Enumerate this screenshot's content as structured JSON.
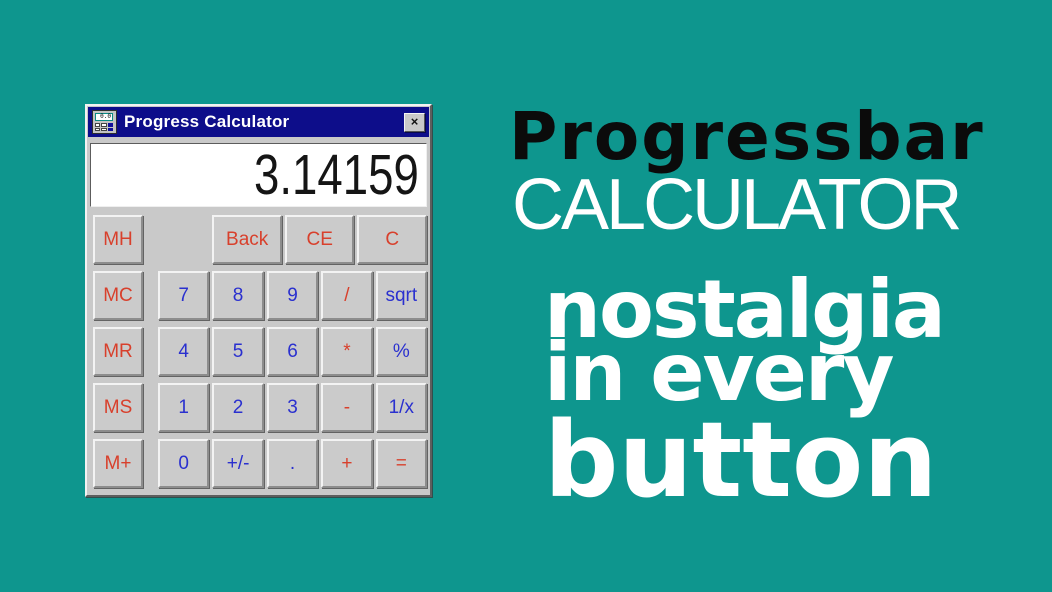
{
  "colors": {
    "teal": "#0e968e",
    "navy": "#0d0d8a",
    "red": "#d8402c",
    "blue": "#2a30cf",
    "window_gray": "#c9c9c9",
    "title_black": "#0b0b0b",
    "text_white": "#ffffff"
  },
  "calculator": {
    "title": "Progress Calculator",
    "icon": "calculator-icon",
    "icon_display": "0.0",
    "close": "×",
    "display": "3.14159",
    "memory_keys": [
      "MH",
      "MC",
      "MR",
      "MS",
      "M+"
    ],
    "top_keys": [
      "Back",
      "CE",
      "C"
    ],
    "key_rows": [
      [
        "7",
        "8",
        "9",
        "/",
        "sqrt"
      ],
      [
        "4",
        "5",
        "6",
        "*",
        "%"
      ],
      [
        "1",
        "2",
        "3",
        "-",
        "1/x"
      ],
      [
        "0",
        "+/-",
        ".",
        "+",
        "="
      ]
    ]
  },
  "poster": {
    "title_line1": "Progressbar",
    "title_line2": "CALCULATOR",
    "tagline": [
      "nostalgia",
      "in every",
      "button"
    ]
  }
}
